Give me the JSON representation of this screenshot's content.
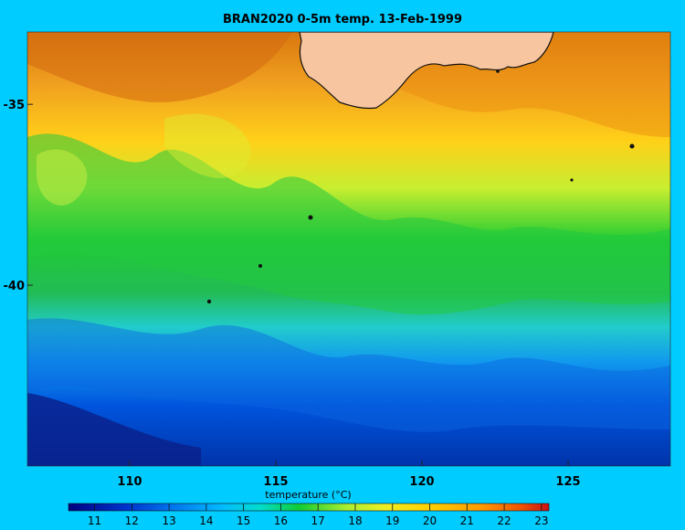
{
  "title": "BRAN2020 0-5m temp. 13-Feb-1999",
  "map": {
    "x_ticks": [
      "110",
      "115",
      "120",
      "125"
    ],
    "x_tick_values": [
      110,
      115,
      120,
      125
    ],
    "y_ticks": [
      "-35",
      "-40"
    ],
    "y_tick_values": [
      -35,
      -40
    ],
    "lon_range": [
      106.5,
      128.5
    ],
    "lat_range": [
      -45,
      -33
    ],
    "land_color": "#f7c59f"
  },
  "colorbar": {
    "label": "temperature (°C)",
    "ticks": [
      "11",
      "12",
      "13",
      "14",
      "15",
      "16",
      "17",
      "18",
      "19",
      "20",
      "21",
      "22",
      "23"
    ],
    "tick_values": [
      11,
      12,
      13,
      14,
      15,
      16,
      17,
      18,
      19,
      20,
      21,
      22,
      23
    ],
    "range": [
      10.3,
      23.2
    ],
    "colors": [
      "#000080",
      "#0033cc",
      "#0077ee",
      "#00bbff",
      "#00ddcc",
      "#11cc33",
      "#22cc22",
      "#aaee33",
      "#eeee22",
      "#ffcc00",
      "#ff9900",
      "#ee5500",
      "#cc1111"
    ]
  }
}
